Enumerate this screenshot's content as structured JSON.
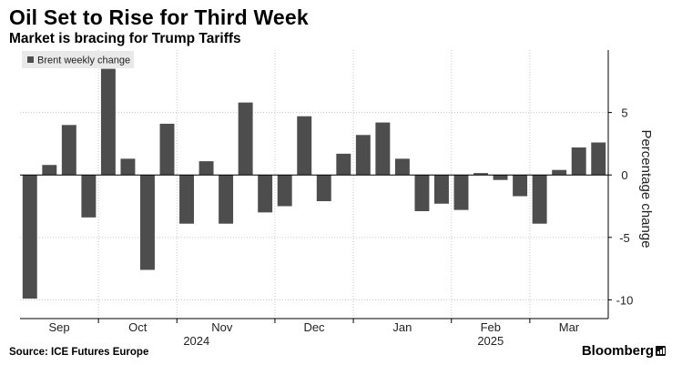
{
  "header": {
    "title": "Oil Set to Rise for Third Week",
    "subtitle": "Market is bracing for Trump Tariffs"
  },
  "footer": {
    "source": "Source: ICE Futures Europe",
    "brand": "Bloomberg"
  },
  "colors": {
    "bar": "#4d4d4d",
    "grid": "#c8c8c8",
    "axis": "#000000",
    "legend_bg": "#e9e9e9"
  },
  "chart_data": {
    "type": "bar",
    "title": "Oil Set to Rise for Third Week",
    "subtitle": "Market is bracing for Trump Tariffs",
    "xlabel": "",
    "ylabel": "Percentage change",
    "ylim": [
      -11.5,
      10
    ],
    "yticks": [
      5,
      0,
      -5,
      -10
    ],
    "ytick_labels": [
      "5",
      "0",
      "-5",
      "-10"
    ],
    "grid": true,
    "legend": {
      "position": "top-left",
      "entries": [
        "Brent weekly change"
      ]
    },
    "series": [
      {
        "name": "Brent weekly change",
        "values": [
          -9.9,
          0.8,
          4.0,
          -3.4,
          8.5,
          1.3,
          -7.6,
          4.1,
          -3.9,
          1.1,
          -3.9,
          5.8,
          -3.0,
          -2.5,
          4.7,
          -2.1,
          1.7,
          3.2,
          4.2,
          1.3,
          -2.9,
          -2.3,
          -2.8,
          0.15,
          -0.4,
          -1.7,
          -3.9,
          0.4,
          2.2,
          2.6
        ]
      }
    ],
    "month_labels": [
      "Sep",
      "Oct",
      "Nov",
      "Dec",
      "Jan",
      "Feb",
      "Mar"
    ],
    "month_label_bars": [
      1.5,
      5.5,
      9.8,
      14.5,
      19,
      23.5,
      27.5
    ],
    "month_boundaries": [
      3.5,
      7.5,
      12.5,
      16.5,
      21.5,
      25.5
    ],
    "year_labels": [
      {
        "label": "2024",
        "at_bar": 8.5
      },
      {
        "label": "2025",
        "at_bar": 23.5
      }
    ]
  }
}
